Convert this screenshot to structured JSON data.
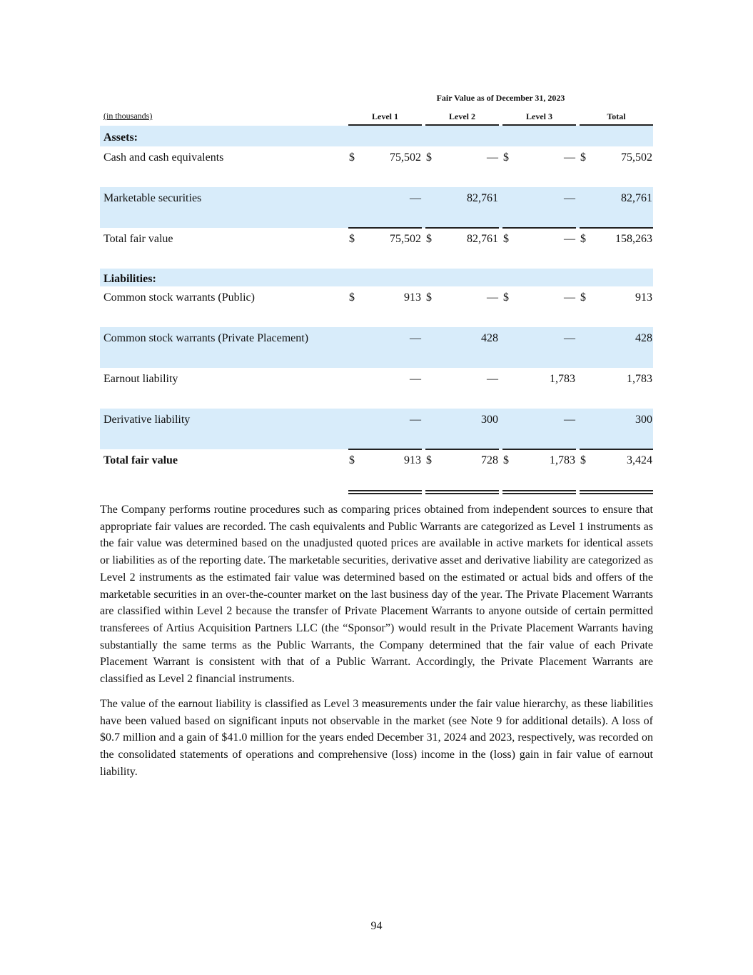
{
  "table": {
    "super_header": "Fair Value as of December 31, 2023",
    "unit_label": "(in thousands)",
    "columns": [
      "Level 1",
      "Level 2",
      "Level 3",
      "Total"
    ],
    "rows": [
      {
        "label": "Assets:"
      },
      {
        "label": "Cash and cash equivalents",
        "cells": [
          {
            "currency": "$",
            "value": "75,502"
          },
          {
            "currency": "$",
            "value": "—"
          },
          {
            "currency": "$",
            "value": "—"
          },
          {
            "currency": "$",
            "value": "75,502"
          }
        ]
      },
      {
        "label": "Marketable securities",
        "cells": [
          {
            "value": "—"
          },
          {
            "value": "82,761"
          },
          {
            "value": "—"
          },
          {
            "value": "82,761"
          }
        ]
      },
      {
        "label": "Total fair value",
        "cells": [
          {
            "currency": "$",
            "value": "75,502"
          },
          {
            "currency": "$",
            "value": "82,761"
          },
          {
            "currency": "$",
            "value": "—"
          },
          {
            "currency": "$",
            "value": "158,263"
          }
        ]
      },
      {
        "label": "Liabilities:"
      },
      {
        "label": "Common stock warrants (Public)",
        "cells": [
          {
            "currency": "$",
            "value": "913"
          },
          {
            "currency": "$",
            "value": "—"
          },
          {
            "currency": "$",
            "value": "—"
          },
          {
            "currency": "$",
            "value": "913"
          }
        ]
      },
      {
        "label": "Common stock warrants (Private Placement)",
        "cells": [
          {
            "value": "—"
          },
          {
            "value": "428"
          },
          {
            "value": "—"
          },
          {
            "value": "428"
          }
        ]
      },
      {
        "label": "Earnout liability",
        "cells": [
          {
            "value": "—"
          },
          {
            "value": "—"
          },
          {
            "value": "1,783"
          },
          {
            "value": "1,783"
          }
        ]
      },
      {
        "label": "Derivative liability",
        "cells": [
          {
            "value": "—"
          },
          {
            "value": "300"
          },
          {
            "value": "—"
          },
          {
            "value": "300"
          }
        ]
      },
      {
        "label": "Total fair value",
        "cells": [
          {
            "currency": "$",
            "value": "913"
          },
          {
            "currency": "$",
            "value": "728"
          },
          {
            "currency": "$",
            "value": "1,783"
          },
          {
            "currency": "$",
            "value": "3,424"
          }
        ]
      }
    ]
  },
  "paragraphs": [
    "The Company performs routine procedures such as comparing prices obtained from independent sources to ensure that appropriate fair values are recorded. The cash equivalents and Public Warrants are categorized as Level 1 instruments as the fair value was determined based on the unadjusted quoted prices are available in active markets for identical assets or liabilities as of the reporting date. The marketable securities, derivative asset and derivative liability are categorized as Level 2 instruments as the estimated fair value was determined based on the estimated or actual bids and offers of the marketable securities in an over-the-counter market on the last business day of the year. The Private Placement Warrants are classified within Level 2 because the transfer of Private Placement Warrants to anyone outside of certain permitted transferees of Artius Acquisition Partners LLC (the “Sponsor”) would result in the Private Placement Warrants having substantially the same terms as the Public Warrants, the Company determined that the fair value of each Private Placement Warrant is consistent with that of a Public Warrant. Accordingly, the Private Placement Warrants are classified as Level 2 financial instruments.",
    "The value of the earnout liability is classified as Level 3 measurements under the fair value hierarchy, as these liabilities have been valued based on significant inputs not observable in the market (see Note 9 for additional details). A loss of $0.7 million and a gain of $41.0 million for the years ended December 31, 2024 and 2023, respectively, was recorded on the consolidated statements of operations and comprehensive (loss) income in the (loss) gain in fair value of earnout liability."
  ],
  "page_number": "94"
}
